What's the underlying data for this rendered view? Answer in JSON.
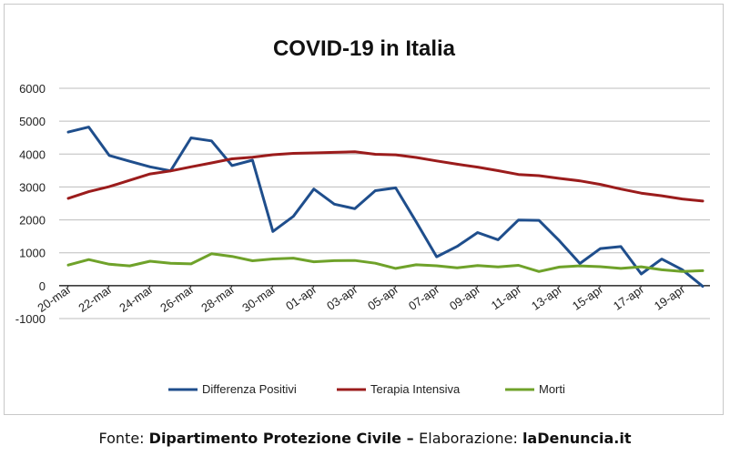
{
  "chart_data": {
    "type": "line",
    "title": "COVID-19 in Italia",
    "xlabel": "",
    "ylabel": "",
    "ylim": [
      -1000,
      6000
    ],
    "yticks": [
      -1000,
      0,
      1000,
      2000,
      3000,
      4000,
      5000,
      6000
    ],
    "grid": true,
    "legend": "bottom",
    "x": [
      "20-mar",
      "21-mar",
      "22-mar",
      "23-mar",
      "24-mar",
      "25-mar",
      "26-mar",
      "27-mar",
      "28-mar",
      "29-mar",
      "30-mar",
      "31-mar",
      "01-apr",
      "02-apr",
      "03-apr",
      "04-apr",
      "05-apr",
      "06-apr",
      "07-apr",
      "08-apr",
      "09-apr",
      "10-apr",
      "11-apr",
      "12-apr",
      "13-apr",
      "14-apr",
      "15-apr",
      "16-apr",
      "17-apr",
      "18-apr",
      "19-apr",
      "20-apr"
    ],
    "x_tick_labels": [
      "20-mar",
      "22-mar",
      "24-mar",
      "26-mar",
      "28-mar",
      "30-mar",
      "01-apr",
      "03-apr",
      "05-apr",
      "07-apr",
      "09-apr",
      "11-apr",
      "13-apr",
      "15-apr",
      "17-apr",
      "19-apr"
    ],
    "series": [
      {
        "name": "Differenza Positivi",
        "color": "#1f4e8c",
        "values": [
          4670,
          4821,
          3957,
          3780,
          3612,
          3491,
          4492,
          4401,
          3651,
          3815,
          1648,
          2107,
          2937,
          2477,
          2339,
          2886,
          2972,
          1941,
          880,
          1195,
          1615,
          1396,
          1996,
          1984,
          1363,
          675,
          1127,
          1189,
          355,
          809,
          486,
          -20
        ]
      },
      {
        "name": "Terapia Intensiva",
        "color": "#9b1c1c",
        "values": [
          2655,
          2857,
          3009,
          3204,
          3396,
          3489,
          3612,
          3732,
          3856,
          3906,
          3981,
          4023,
          4035,
          4053,
          4068,
          3994,
          3977,
          3898,
          3792,
          3693,
          3605,
          3497,
          3381,
          3343,
          3260,
          3186,
          3079,
          2936,
          2812,
          2733,
          2635,
          2573
        ]
      },
      {
        "name": "Morti",
        "color": "#6fa22a",
        "values": [
          627,
          793,
          651,
          601,
          743,
          683,
          662,
          969,
          889,
          756,
          812,
          837,
          727,
          760,
          766,
          681,
          525,
          636,
          604,
          542,
          610,
          570,
          619,
          431,
          566,
          602,
          578,
          525,
          575,
          482,
          433,
          454
        ]
      }
    ]
  },
  "source": {
    "prefix": "Fonte: ",
    "org": "Dipartimento Protezione Civile",
    "dash": " – ",
    "elab_label": "Elaborazione: ",
    "elab_site": "laDenuncia.it"
  }
}
